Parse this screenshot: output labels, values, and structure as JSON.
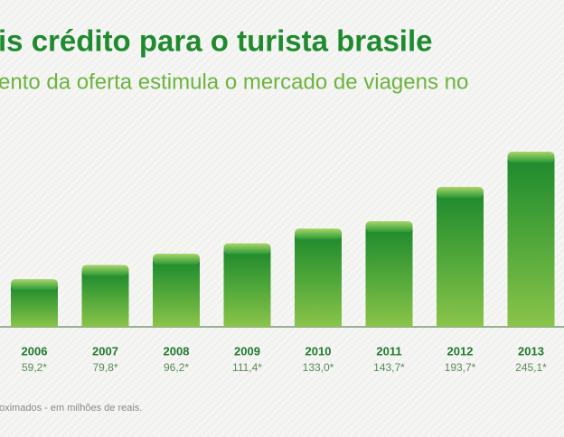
{
  "chart_data": {
    "type": "bar",
    "title": "is crédito para o turista brasile",
    "subtitle": "ento da oferta estimula o mercado de viagens no",
    "footnote": "oximados - em milhões de reais.",
    "categories": [
      "2006",
      "2007",
      "2008",
      "2009",
      "2010",
      "2011",
      "2012",
      "2013"
    ],
    "values": [
      59.2,
      79.8,
      96.2,
      111.4,
      133.0,
      143.7,
      193.7,
      245.1
    ],
    "value_labels": [
      "59,2*",
      "79,8*",
      "96,2*",
      "111,4*",
      "133,0*",
      "143,7*",
      "193,7*",
      "245,1*"
    ],
    "color": "#3f9a2f"
  }
}
